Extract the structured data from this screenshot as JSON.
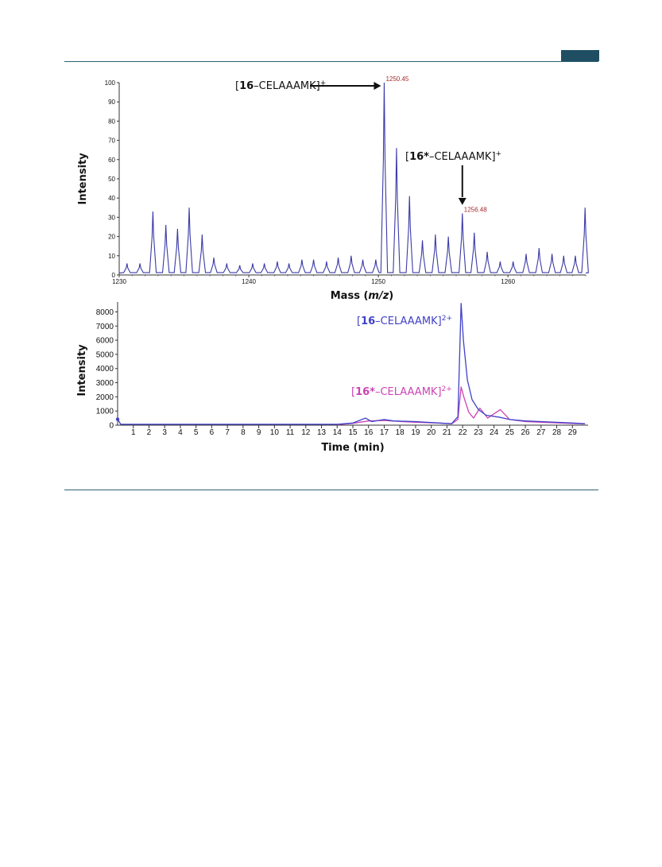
{
  "chart_data": [
    {
      "type": "line",
      "xlabel_prefix": "Mass (",
      "xlabel_italic": "m/z",
      "xlabel_suffix": ")",
      "ylabel": "Intensity",
      "xlim": [
        1230,
        1266
      ],
      "ylim": [
        0,
        100
      ],
      "x_ticks": [
        1230,
        1240,
        1250,
        1260
      ],
      "y_ticks": [
        0,
        10,
        20,
        30,
        40,
        50,
        60,
        70,
        80,
        90,
        100
      ],
      "line_color": "#3a3aa8",
      "peaks": [
        {
          "x": 1230.6,
          "y": 6
        },
        {
          "x": 1231.6,
          "y": 6
        },
        {
          "x": 1232.6,
          "y": 33
        },
        {
          "x": 1233.6,
          "y": 26
        },
        {
          "x": 1234.5,
          "y": 24
        },
        {
          "x": 1235.4,
          "y": 35
        },
        {
          "x": 1236.4,
          "y": 21
        },
        {
          "x": 1237.3,
          "y": 9
        },
        {
          "x": 1238.3,
          "y": 6
        },
        {
          "x": 1239.3,
          "y": 5
        },
        {
          "x": 1240.3,
          "y": 6
        },
        {
          "x": 1241.2,
          "y": 6
        },
        {
          "x": 1242.2,
          "y": 7
        },
        {
          "x": 1243.1,
          "y": 6
        },
        {
          "x": 1244.1,
          "y": 8
        },
        {
          "x": 1245.0,
          "y": 8
        },
        {
          "x": 1246.0,
          "y": 7
        },
        {
          "x": 1246.9,
          "y": 9
        },
        {
          "x": 1247.9,
          "y": 10
        },
        {
          "x": 1248.8,
          "y": 8
        },
        {
          "x": 1249.8,
          "y": 8
        },
        {
          "x": 1250.45,
          "y": 100
        },
        {
          "x": 1251.4,
          "y": 66
        },
        {
          "x": 1252.4,
          "y": 41
        },
        {
          "x": 1253.4,
          "y": 18
        },
        {
          "x": 1254.4,
          "y": 21
        },
        {
          "x": 1255.4,
          "y": 20
        },
        {
          "x": 1256.48,
          "y": 32
        },
        {
          "x": 1257.4,
          "y": 22
        },
        {
          "x": 1258.4,
          "y": 12
        },
        {
          "x": 1259.4,
          "y": 7
        },
        {
          "x": 1260.4,
          "y": 7
        },
        {
          "x": 1261.4,
          "y": 11
        },
        {
          "x": 1262.4,
          "y": 14
        },
        {
          "x": 1263.4,
          "y": 11
        },
        {
          "x": 1264.3,
          "y": 10
        },
        {
          "x": 1265.2,
          "y": 10
        },
        {
          "x": 1265.95,
          "y": 35
        }
      ],
      "peak_labels": [
        {
          "x": 1250.45,
          "y": 100,
          "text": "1250.45"
        },
        {
          "x": 1256.48,
          "y": 32,
          "text": "1256.48"
        }
      ],
      "annotations": [
        {
          "bracket_open": "[",
          "bold": "16",
          "rest": "–CELAAAMK]",
          "sup": "+",
          "color": "#111111"
        },
        {
          "bracket_open": "[",
          "bold": "16*",
          "rest": "–CELAAAMK]",
          "sup": "+",
          "color": "#111111"
        }
      ]
    },
    {
      "type": "line",
      "xlabel": "Time (min)",
      "ylabel": "Intensity",
      "xlim": [
        0,
        30
      ],
      "ylim": [
        0,
        8700
      ],
      "x_ticks": [
        1,
        2,
        3,
        4,
        5,
        6,
        7,
        8,
        9,
        10,
        11,
        12,
        13,
        14,
        15,
        16,
        17,
        18,
        19,
        20,
        21,
        22,
        23,
        24,
        25,
        26,
        27,
        28,
        29
      ],
      "y_ticks": [
        0,
        1000,
        2000,
        3000,
        4000,
        5000,
        6000,
        7000,
        8000
      ],
      "series": [
        {
          "color": "#4040c8",
          "points": [
            [
              0,
              420
            ],
            [
              0.2,
              60
            ],
            [
              14,
              60
            ],
            [
              15,
              150
            ],
            [
              15.8,
              500
            ],
            [
              16.2,
              250
            ],
            [
              17,
              400
            ],
            [
              17.6,
              300
            ],
            [
              19,
              250
            ],
            [
              20.5,
              150
            ],
            [
              21.3,
              100
            ],
            [
              21.7,
              600
            ],
            [
              21.9,
              8600
            ],
            [
              22.05,
              6000
            ],
            [
              22.3,
              3200
            ],
            [
              22.6,
              1800
            ],
            [
              23,
              1100
            ],
            [
              23.5,
              700
            ],
            [
              24.4,
              550
            ],
            [
              25,
              400
            ],
            [
              26,
              300
            ],
            [
              27,
              250
            ],
            [
              28,
              200
            ],
            [
              29,
              150
            ],
            [
              29.8,
              100
            ]
          ]
        },
        {
          "color": "#cc44b4",
          "points": [
            [
              14,
              40
            ],
            [
              15,
              130
            ],
            [
              16,
              300
            ],
            [
              17,
              330
            ],
            [
              18,
              260
            ],
            [
              19,
              200
            ],
            [
              20.5,
              150
            ],
            [
              21.3,
              90
            ],
            [
              21.7,
              400
            ],
            [
              21.9,
              2700
            ],
            [
              22.1,
              1900
            ],
            [
              22.4,
              900
            ],
            [
              22.7,
              500
            ],
            [
              23.1,
              1200
            ],
            [
              23.6,
              500
            ],
            [
              24.4,
              1100
            ],
            [
              25,
              400
            ],
            [
              26,
              250
            ],
            [
              27,
              200
            ],
            [
              28,
              160
            ],
            [
              29,
              120
            ],
            [
              29.8,
              90
            ]
          ]
        }
      ],
      "annotations": [
        {
          "bracket_open": "[",
          "bold": "16",
          "rest": "–CELAAAMK]",
          "sup": "2+",
          "color": "#4040c8"
        },
        {
          "bracket_open": "[",
          "bold": "16*",
          "rest": "–CELAAAMK]",
          "sup": "2+",
          "color": "#cc44b4"
        }
      ]
    }
  ]
}
